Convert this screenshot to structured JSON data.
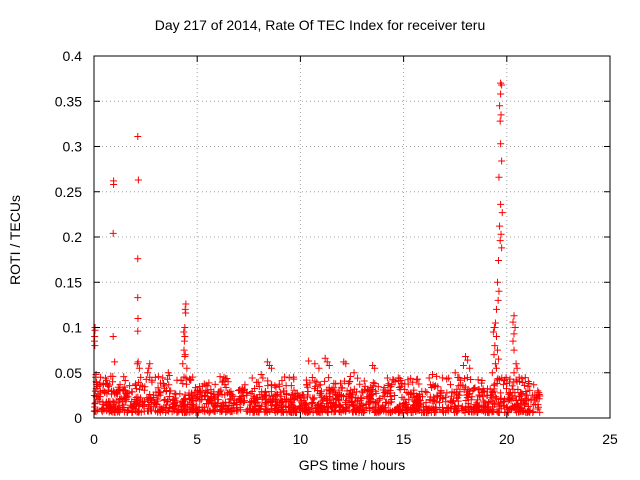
{
  "chart_data": {
    "type": "scatter",
    "title": "Day 217 of 2014, Rate Of TEC Index for receiver teru",
    "xlabel": "GPS time / hours",
    "ylabel": "ROTI / TECUs",
    "xlim": [
      0,
      25
    ],
    "ylim": [
      0,
      0.4
    ],
    "xticks": [
      "0",
      "5",
      "10",
      "15",
      "20",
      "25"
    ],
    "yticks": [
      "0",
      "0.05",
      "0.1",
      "0.15",
      "0.2",
      "0.25",
      "0.3",
      "0.35",
      "0.4"
    ],
    "xtick_values": [
      0,
      5,
      10,
      15,
      20,
      25
    ],
    "ytick_values": [
      0,
      0.05,
      0.1,
      0.15,
      0.2,
      0.25,
      0.3,
      0.35,
      0.4
    ],
    "grid": true,
    "marker": "+",
    "color": "#ff0000",
    "points": [
      [
        0.05,
        0.1
      ],
      [
        0.05,
        0.097
      ],
      [
        0.03,
        0.09
      ],
      [
        0.02,
        0.085
      ],
      [
        0.04,
        0.08
      ],
      [
        0.1,
        0.048
      ],
      [
        0.08,
        0.045
      ],
      [
        0.1,
        0.04
      ],
      [
        0.95,
        0.262
      ],
      [
        0.95,
        0.258
      ],
      [
        0.93,
        0.204
      ],
      [
        0.93,
        0.09
      ],
      [
        1.0,
        0.062
      ],
      [
        0.9,
        0.04
      ],
      [
        2.12,
        0.311
      ],
      [
        2.15,
        0.263
      ],
      [
        2.12,
        0.176
      ],
      [
        2.12,
        0.133
      ],
      [
        2.13,
        0.11
      ],
      [
        2.12,
        0.096
      ],
      [
        2.14,
        0.062
      ],
      [
        2.1,
        0.06
      ],
      [
        2.2,
        0.055
      ],
      [
        2.7,
        0.06
      ],
      [
        2.65,
        0.055
      ],
      [
        2.6,
        0.05
      ],
      [
        2.7,
        0.045
      ],
      [
        3.6,
        0.05
      ],
      [
        3.65,
        0.047
      ],
      [
        4.45,
        0.126
      ],
      [
        4.42,
        0.12
      ],
      [
        4.44,
        0.116
      ],
      [
        4.4,
        0.1
      ],
      [
        4.35,
        0.095
      ],
      [
        4.4,
        0.09
      ],
      [
        4.38,
        0.085
      ],
      [
        4.36,
        0.075
      ],
      [
        4.42,
        0.07
      ],
      [
        4.4,
        0.068
      ],
      [
        4.3,
        0.06
      ],
      [
        4.5,
        0.055
      ],
      [
        6.3,
        0.045
      ],
      [
        6.5,
        0.04
      ],
      [
        8.1,
        0.048
      ],
      [
        8.4,
        0.062
      ],
      [
        8.5,
        0.058
      ],
      [
        8.6,
        0.055
      ],
      [
        10.4,
        0.063
      ],
      [
        10.7,
        0.06
      ],
      [
        10.9,
        0.055
      ],
      [
        11.2,
        0.066
      ],
      [
        11.3,
        0.062
      ],
      [
        11.4,
        0.058
      ],
      [
        12.1,
        0.062
      ],
      [
        12.2,
        0.06
      ],
      [
        12.6,
        0.05
      ],
      [
        13.5,
        0.058
      ],
      [
        13.6,
        0.055
      ],
      [
        16.4,
        0.048
      ],
      [
        16.6,
        0.046
      ],
      [
        17.5,
        0.05
      ],
      [
        18.0,
        0.068
      ],
      [
        18.1,
        0.064
      ],
      [
        17.9,
        0.058
      ],
      [
        18.2,
        0.055
      ],
      [
        19.7,
        0.37
      ],
      [
        19.75,
        0.368
      ],
      [
        19.7,
        0.358
      ],
      [
        19.65,
        0.345
      ],
      [
        19.72,
        0.335
      ],
      [
        19.68,
        0.328
      ],
      [
        19.7,
        0.303
      ],
      [
        19.75,
        0.284
      ],
      [
        19.62,
        0.266
      ],
      [
        19.7,
        0.236
      ],
      [
        19.78,
        0.227
      ],
      [
        19.65,
        0.212
      ],
      [
        19.72,
        0.203
      ],
      [
        19.68,
        0.196
      ],
      [
        19.75,
        0.188
      ],
      [
        19.6,
        0.174
      ],
      [
        19.55,
        0.15
      ],
      [
        19.62,
        0.14
      ],
      [
        19.58,
        0.13
      ],
      [
        19.5,
        0.12
      ],
      [
        19.45,
        0.105
      ],
      [
        19.4,
        0.1
      ],
      [
        19.35,
        0.095
      ],
      [
        19.5,
        0.09
      ],
      [
        19.42,
        0.08
      ],
      [
        19.55,
        0.075
      ],
      [
        19.38,
        0.07
      ],
      [
        19.6,
        0.065
      ],
      [
        19.45,
        0.06
      ],
      [
        19.5,
        0.055
      ],
      [
        19.3,
        0.05
      ],
      [
        20.35,
        0.113
      ],
      [
        20.3,
        0.106
      ],
      [
        20.4,
        0.1
      ],
      [
        20.35,
        0.093
      ],
      [
        20.3,
        0.085
      ],
      [
        20.35,
        0.075
      ],
      [
        20.45,
        0.06
      ],
      [
        20.5,
        0.055
      ],
      [
        20.35,
        0.05
      ],
      [
        20.6,
        0.045
      ],
      [
        21.5,
        0.03
      ],
      [
        21.55,
        0.028
      ],
      [
        21.5,
        0.01
      ]
    ],
    "band": {
      "x_range": [
        0,
        21.6
      ],
      "y_range": [
        0.006,
        0.032
      ],
      "density": 60
    }
  }
}
